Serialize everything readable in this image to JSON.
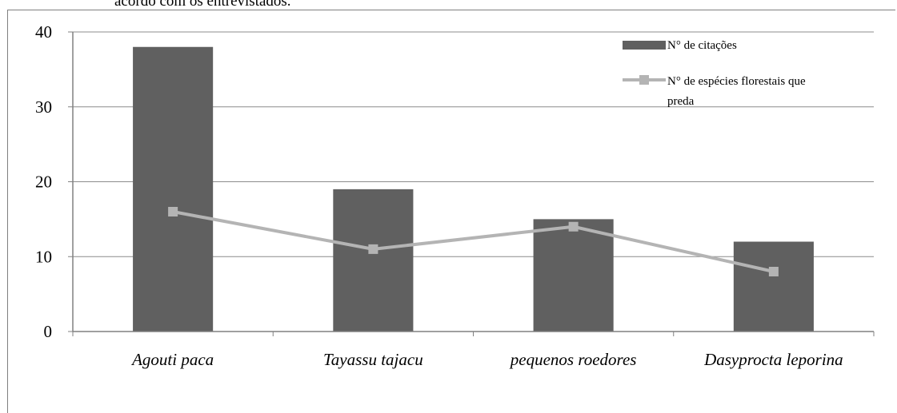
{
  "caption_fragment": "acordo com os entrevistados.",
  "chart_data": {
    "type": "bar",
    "title": "",
    "xlabel": "",
    "ylabel": "",
    "ylim": [
      0,
      40
    ],
    "yticks": [
      0,
      10,
      20,
      30,
      40
    ],
    "grid": true,
    "legend_position": "top-right",
    "categories": [
      "Agouti paca",
      "Tayassu tajacu",
      "pequenos roedores",
      "Dasyprocta leporina"
    ],
    "series": [
      {
        "name": "N° de citações",
        "kind": "bar",
        "color": "#606060",
        "values": [
          38,
          19,
          15,
          12
        ]
      },
      {
        "name_lines": [
          "N° de espécies florestais que",
          "preda"
        ],
        "kind": "line",
        "marker": "square",
        "color": "#b4b4b4",
        "values": [
          16,
          11,
          14,
          8
        ]
      }
    ]
  }
}
